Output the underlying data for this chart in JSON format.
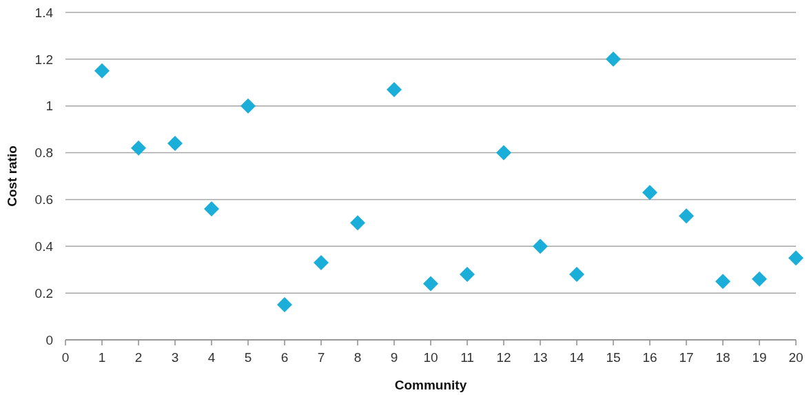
{
  "chart_data": {
    "type": "scatter",
    "xlabel": "Community",
    "ylabel": "Cost ratio",
    "x": [
      1,
      2,
      3,
      4,
      5,
      6,
      7,
      8,
      9,
      10,
      11,
      12,
      13,
      14,
      15,
      16,
      17,
      18,
      19,
      20
    ],
    "values": [
      1.15,
      0.82,
      0.84,
      0.56,
      1.0,
      0.15,
      0.33,
      0.5,
      1.07,
      0.24,
      0.28,
      0.8,
      0.4,
      0.28,
      1.2,
      0.63,
      0.53,
      0.25,
      0.26,
      0.35
    ],
    "color": "#1aaed8",
    "marker": "diamond",
    "xlim": [
      0,
      20
    ],
    "xticks": [
      0,
      1,
      2,
      3,
      4,
      5,
      6,
      7,
      8,
      9,
      10,
      11,
      12,
      13,
      14,
      15,
      16,
      17,
      18,
      19,
      20
    ],
    "ylim": [
      0,
      1.4
    ],
    "yticks": [
      0,
      0.2,
      0.4,
      0.6,
      0.8,
      1,
      1.2,
      1.4
    ],
    "grid": "y"
  }
}
